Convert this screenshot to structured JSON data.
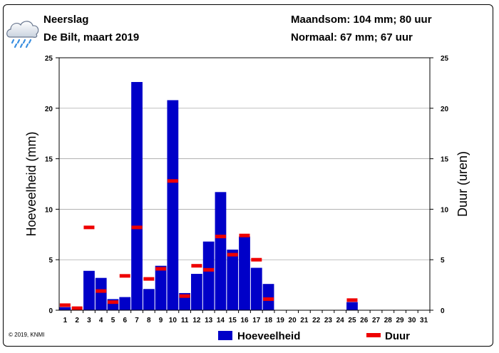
{
  "header": {
    "title": "Neerslag",
    "subtitle": "De Bilt, maart 2019",
    "month_sum": "Maandsom: 104 mm; 80 uur",
    "normal": "Normaal: 67 mm; 67 uur"
  },
  "footer": {
    "copyright": "© 2019, KNMI"
  },
  "icons": {
    "weather": "rain-cloud-icon"
  },
  "colors": {
    "bars": "#0000c8",
    "duration": "#ee0000",
    "grid": "#999999"
  },
  "chart_data": {
    "type": "bar",
    "categories": [
      "1",
      "2",
      "3",
      "4",
      "5",
      "6",
      "7",
      "8",
      "9",
      "10",
      "11",
      "12",
      "13",
      "14",
      "15",
      "16",
      "17",
      "18",
      "19",
      "20",
      "21",
      "22",
      "23",
      "24",
      "25",
      "26",
      "27",
      "28",
      "29",
      "30",
      "31"
    ],
    "series": [
      {
        "name": "Hoeveelheid",
        "type": "bar",
        "axis": "left",
        "values": [
          0.3,
          0.0,
          3.9,
          3.2,
          1.1,
          1.3,
          22.6,
          2.1,
          4.4,
          20.8,
          1.7,
          3.6,
          6.8,
          11.7,
          6.0,
          7.3,
          4.2,
          2.6,
          0,
          0,
          0,
          0,
          0,
          0,
          0.8,
          0,
          0,
          0,
          0,
          0,
          0
        ]
      },
      {
        "name": "Duur",
        "type": "marker",
        "axis": "right",
        "values": [
          0.5,
          0.2,
          8.2,
          1.9,
          0.8,
          3.4,
          8.2,
          3.1,
          4.1,
          12.8,
          1.4,
          4.4,
          4.0,
          7.3,
          5.5,
          7.4,
          5.0,
          1.1,
          0,
          0,
          0,
          0,
          0,
          0,
          1.0,
          0,
          0,
          0,
          0,
          0,
          0
        ]
      }
    ],
    "ylabel": "Hoeveelheid (mm)",
    "y2label": "Duur (uren)",
    "ylim": [
      0,
      25
    ],
    "y2lim": [
      0,
      25
    ],
    "yticks": [
      "0",
      "5",
      "10",
      "15",
      "20",
      "25"
    ],
    "grid": true,
    "legend": [
      "Hoeveelheid",
      "Duur"
    ],
    "legend_position": "bottom"
  }
}
